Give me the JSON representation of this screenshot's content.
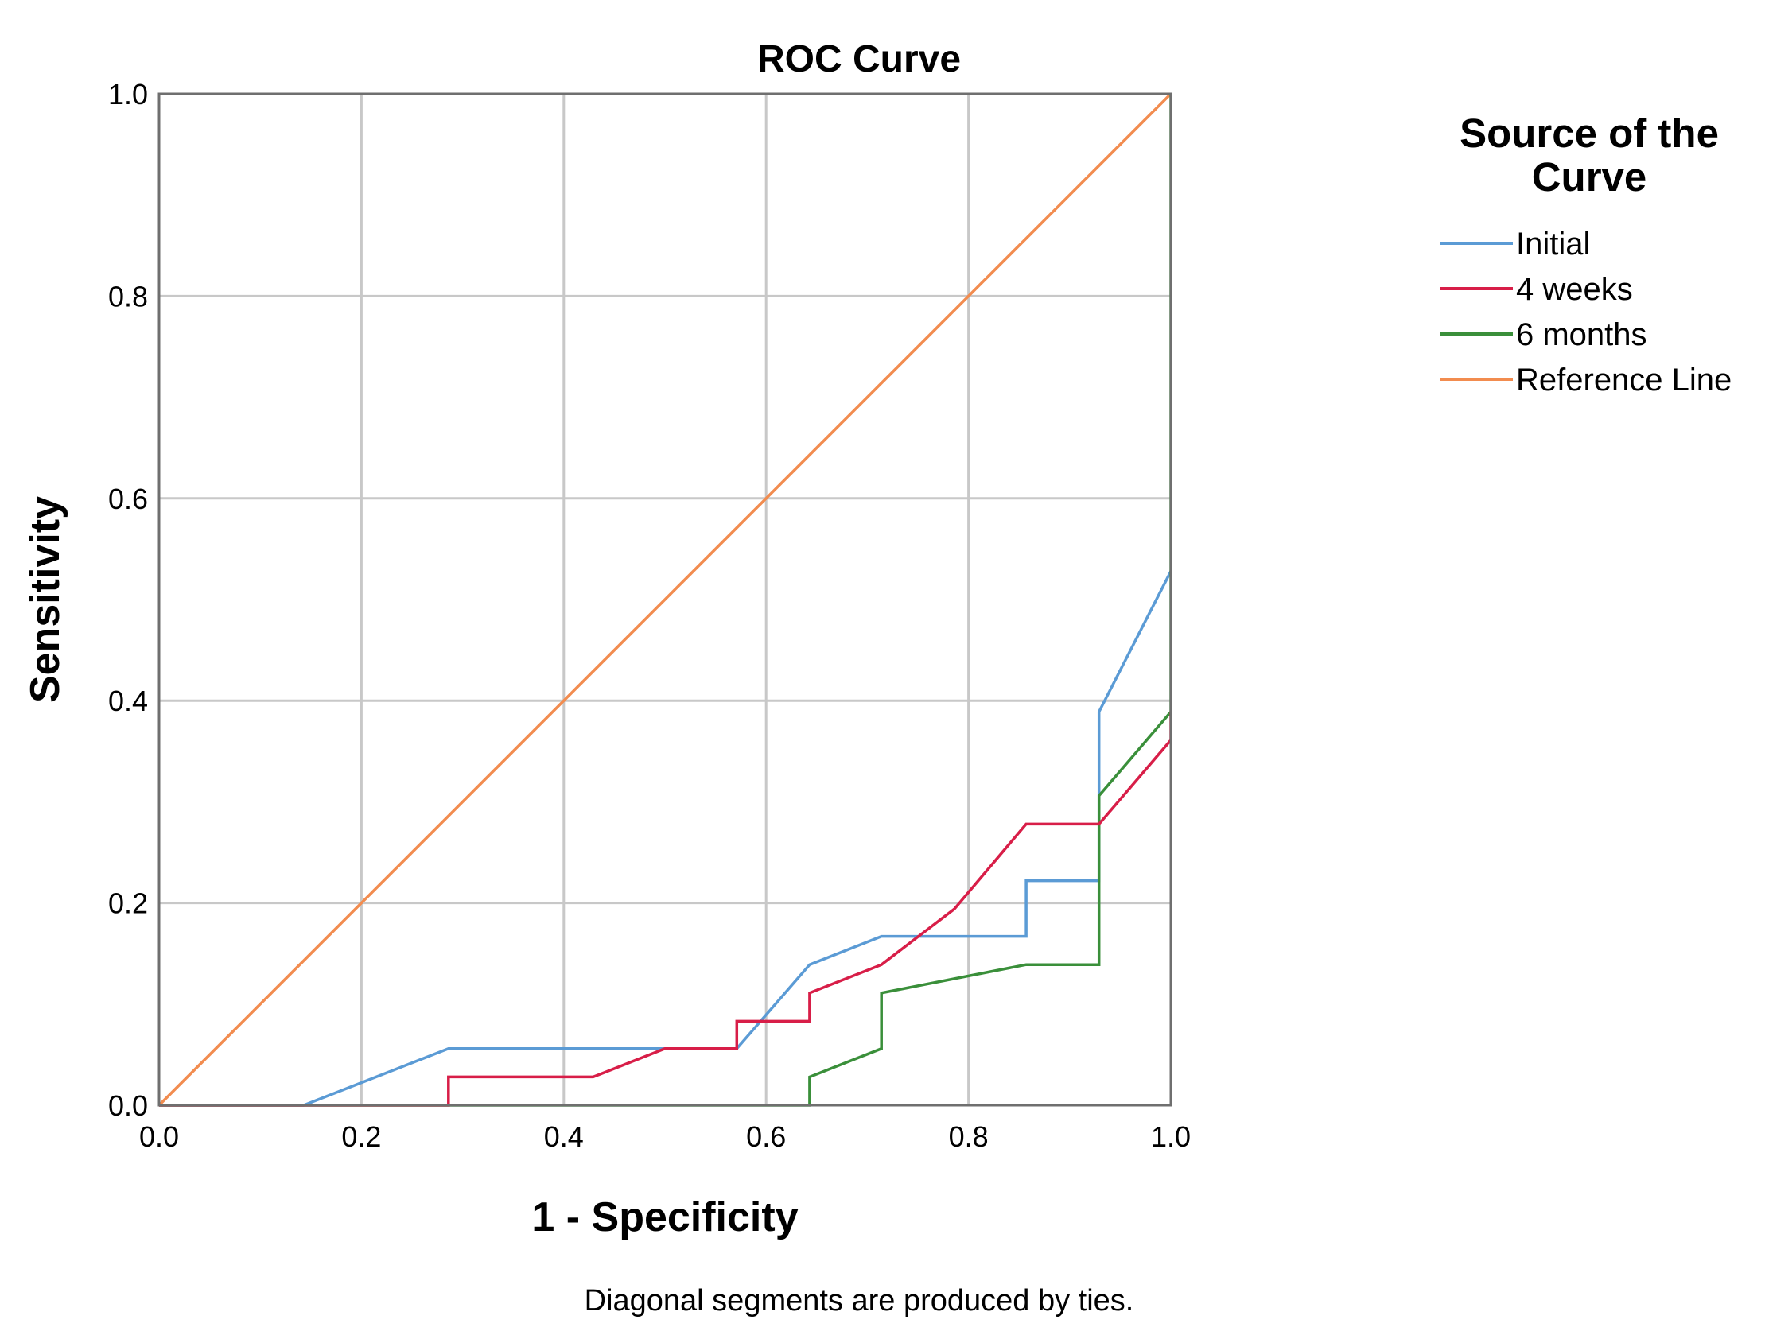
{
  "chart_data": {
    "type": "line",
    "title": "ROC Curve",
    "xlabel": "1 - Specificity",
    "ylabel": "Sensitivity",
    "xlim": [
      0,
      1
    ],
    "ylim": [
      0,
      1
    ],
    "xticks": [
      "0.0",
      "0.2",
      "0.4",
      "0.6",
      "0.8",
      "1.0"
    ],
    "yticks": [
      "0.0",
      "0.2",
      "0.4",
      "0.6",
      "0.8",
      "1.0"
    ],
    "grid": true,
    "legend_title_lines": [
      "Source of the",
      "Curve"
    ],
    "legend_position": "right",
    "footnote": "Diagonal segments are produced by ties.",
    "series": [
      {
        "name": "Initial",
        "color": "#5b9bd5",
        "points": [
          [
            0,
            0
          ],
          [
            0.143,
            0
          ],
          [
            0.286,
            0.056
          ],
          [
            0.571,
            0.056
          ],
          [
            0.643,
            0.139
          ],
          [
            0.714,
            0.167
          ],
          [
            0.857,
            0.167
          ],
          [
            0.857,
            0.222
          ],
          [
            0.929,
            0.222
          ],
          [
            0.929,
            0.389
          ],
          [
            1,
            0.528
          ]
        ]
      },
      {
        "name": "4 weeks",
        "color": "#d81e48",
        "points": [
          [
            0,
            0
          ],
          [
            0.286,
            0
          ],
          [
            0.286,
            0.028
          ],
          [
            0.429,
            0.028
          ],
          [
            0.5,
            0.056
          ],
          [
            0.571,
            0.056
          ],
          [
            0.571,
            0.083
          ],
          [
            0.643,
            0.083
          ],
          [
            0.643,
            0.111
          ],
          [
            0.714,
            0.139
          ],
          [
            0.786,
            0.194
          ],
          [
            0.857,
            0.278
          ],
          [
            0.929,
            0.278
          ],
          [
            1,
            0.361
          ],
          [
            1,
            0.389
          ]
        ]
      },
      {
        "name": "6 months",
        "color": "#3a8f3a",
        "points": [
          [
            0,
            0
          ],
          [
            0.643,
            0
          ],
          [
            0.643,
            0.028
          ],
          [
            0.714,
            0.056
          ],
          [
            0.714,
            0.111
          ],
          [
            0.857,
            0.139
          ],
          [
            0.929,
            0.139
          ],
          [
            0.929,
            0.306
          ],
          [
            1,
            0.389
          ],
          [
            1,
            1
          ]
        ]
      },
      {
        "name": "Reference Line",
        "color": "#f28c4f",
        "points": [
          [
            0,
            0
          ],
          [
            1,
            1
          ]
        ]
      }
    ]
  }
}
